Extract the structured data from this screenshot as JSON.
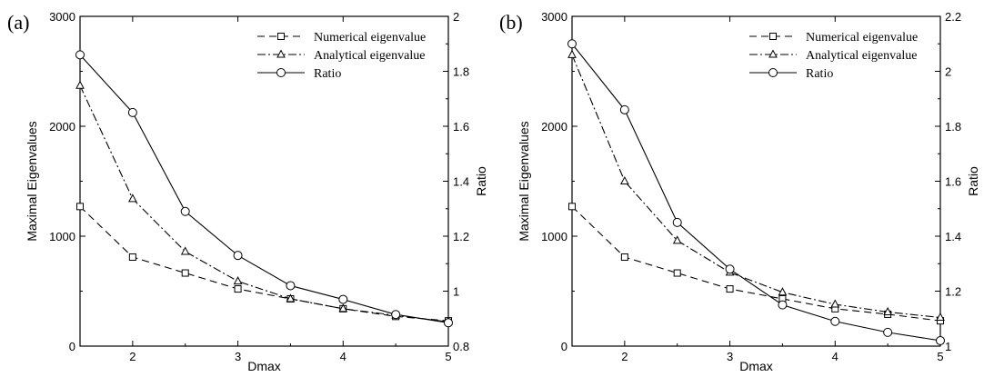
{
  "chart_data": [
    {
      "type": "line",
      "panel_label": "(a)",
      "xlabel": "Dmax",
      "ylabel": "Maximal Eigenvalues",
      "y2label": "Ratio",
      "xlim": [
        1.5,
        5
      ],
      "ylim": [
        0,
        3000
      ],
      "y2lim": [
        0.8,
        2
      ],
      "xticks": [
        "2",
        "3",
        "4",
        "5"
      ],
      "xtick_values": [
        2,
        3,
        4,
        5
      ],
      "yticks": [
        "0",
        "1000",
        "2000",
        "3000"
      ],
      "ytick_values": [
        0,
        1000,
        2000,
        3000
      ],
      "y2ticks": [
        "0.8",
        "1",
        "1.2",
        "1.4",
        "1.6",
        "1.8",
        "2"
      ],
      "y2tick_values": [
        0.8,
        1,
        1.2,
        1.4,
        1.6,
        1.8,
        2
      ],
      "legend_position": "top-right",
      "x": [
        1.5,
        2,
        2.5,
        3,
        3.5,
        4,
        4.5,
        5
      ],
      "series": [
        {
          "name": "Numerical eigenvalue",
          "axis": "left",
          "marker": "square",
          "dash": "dashed",
          "values": [
            1270,
            810,
            665,
            520,
            430,
            340,
            270,
            230
          ]
        },
        {
          "name": "Analytical eigenvalue",
          "axis": "left",
          "marker": "triangle",
          "dash": "dashdot",
          "values": [
            2370,
            1340,
            860,
            590,
            430,
            340,
            280,
            220
          ]
        },
        {
          "name": "Ratio",
          "axis": "right",
          "marker": "circle",
          "dash": "solid",
          "values": [
            1.86,
            1.65,
            1.29,
            1.13,
            1.02,
            0.97,
            0.915,
            0.885
          ]
        }
      ]
    },
    {
      "type": "line",
      "panel_label": "(b)",
      "xlabel": "Dmax",
      "ylabel": "Maximal Eigenvalues",
      "y2label": "Ratio",
      "xlim": [
        1.5,
        5
      ],
      "ylim": [
        0,
        3000
      ],
      "y2lim": [
        1,
        2.2
      ],
      "xticks": [
        "2",
        "3",
        "4",
        "5"
      ],
      "xtick_values": [
        2,
        3,
        4,
        5
      ],
      "yticks": [
        "0",
        "1000",
        "2000",
        "3000"
      ],
      "ytick_values": [
        0,
        1000,
        2000,
        3000
      ],
      "y2ticks": [
        "1",
        "1.2",
        "1.4",
        "1.6",
        "1.8",
        "2",
        "2.2"
      ],
      "y2tick_values": [
        1,
        1.2,
        1.4,
        1.6,
        1.8,
        2,
        2.2
      ],
      "legend_position": "top-right",
      "x": [
        1.5,
        2,
        2.5,
        3,
        3.5,
        4,
        4.5,
        5
      ],
      "series": [
        {
          "name": "Numerical eigenvalue",
          "axis": "left",
          "marker": "square",
          "dash": "dashed",
          "values": [
            1270,
            810,
            665,
            520,
            430,
            340,
            290,
            230
          ]
        },
        {
          "name": "Analytical eigenvalue",
          "axis": "left",
          "marker": "triangle",
          "dash": "dashdot",
          "values": [
            2650,
            1500,
            960,
            670,
            490,
            380,
            310,
            260
          ]
        },
        {
          "name": "Ratio",
          "axis": "right",
          "marker": "circle",
          "dash": "solid",
          "values": [
            2.1,
            1.86,
            1.45,
            1.28,
            1.15,
            1.09,
            1.05,
            1.02
          ]
        }
      ]
    }
  ]
}
